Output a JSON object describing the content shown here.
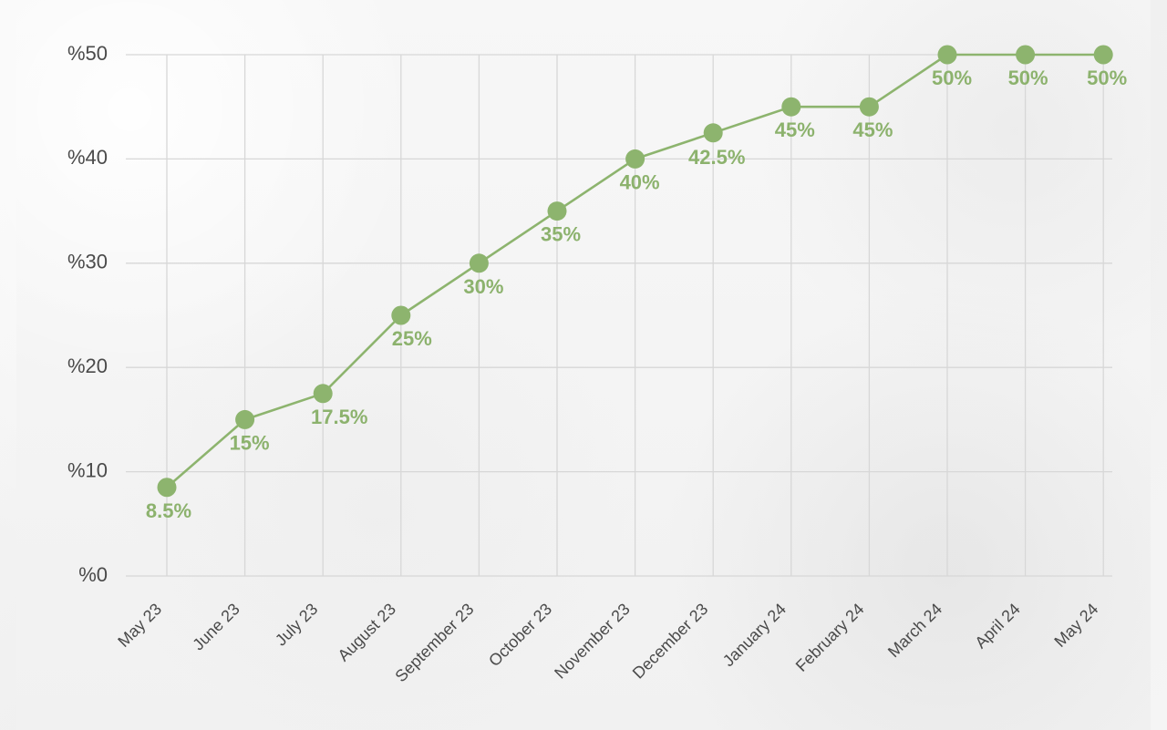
{
  "chart_data": {
    "type": "line",
    "categories": [
      "May 23",
      "June 23",
      "July 23",
      "August 23",
      "September 23",
      "October 23",
      "November 23",
      "December 23",
      "January 24",
      "February 24",
      "March 24",
      "April 24",
      "May 24"
    ],
    "values": [
      8.5,
      15,
      17.5,
      25,
      30,
      35,
      40,
      42.5,
      45,
      45,
      50,
      50,
      50
    ],
    "data_labels": [
      "8.5%",
      "15%",
      "17.5%",
      "25%",
      "30%",
      "35%",
      "40%",
      "42.5%",
      "45%",
      "45%",
      "50%",
      "50%",
      "50%"
    ],
    "y_ticks": [
      "%0",
      "%10",
      "%20",
      "%30",
      "%40",
      "%50"
    ],
    "ylim": [
      0,
      50
    ],
    "grid": true,
    "colors": {
      "line": "#8db46e",
      "marker": "#8db46e",
      "label": "#8cb26d",
      "grid": "#d7d7d7",
      "axis_text": "#4a4a4a"
    }
  }
}
